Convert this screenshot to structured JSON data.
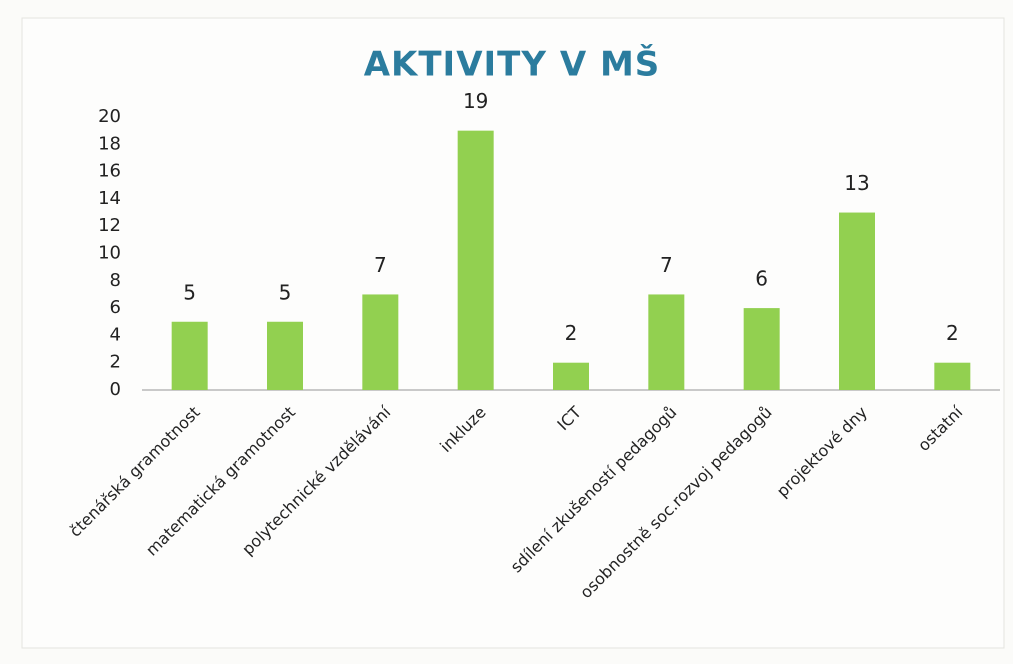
{
  "chart_data": {
    "type": "bar",
    "title": "AKTIVITY V MŠ",
    "categories": [
      "čtenářská gramotnost",
      "matematická gramotnost",
      "polytechnické vzdělávání",
      "inkluze",
      "ICT",
      "sdílení zkušeností pedagogů",
      "osobnostně soc.rozvoj pedagogů",
      "projektové dny",
      "ostatní"
    ],
    "values": [
      5,
      5,
      7,
      19,
      2,
      7,
      6,
      13,
      2
    ],
    "color": "#92d050",
    "ylim": [
      0,
      20
    ],
    "yticks": [
      0,
      2,
      4,
      6,
      8,
      10,
      12,
      14,
      16,
      18,
      20
    ],
    "grid": false
  }
}
